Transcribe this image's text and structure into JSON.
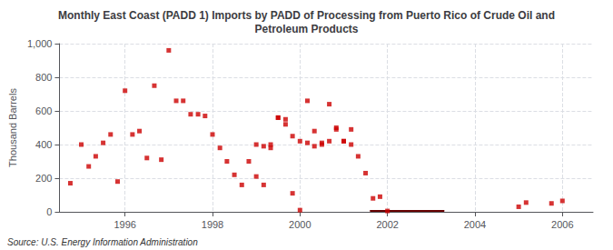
{
  "chart_data": {
    "type": "scatter",
    "title": "Monthly East Coast (PADD 1) Imports by PADD of Processing from Puerto Rico of Crude Oil and\nPetroleum Products",
    "ylabel": "Thousand Barrels",
    "source": "Source: U.S. Energy Information Administration",
    "series": [
      {
        "type": "scatter",
        "marker": "square",
        "color": "#cc0000",
        "x": [
          1994.75,
          1995.0,
          1995.17,
          1995.33,
          1995.5,
          1995.67,
          1995.83,
          1996.0,
          1996.17,
          1996.33,
          1996.5,
          1996.67,
          1996.83,
          1997.0,
          1997.17,
          1997.33,
          1997.5,
          1997.67,
          1997.83,
          1998.0,
          1998.17,
          1998.33,
          1998.5,
          1998.67,
          1998.83,
          1999.0,
          1999.17,
          1999.33,
          1999.5,
          1999.67,
          1999.83,
          2000.0,
          2000.17,
          2000.33,
          2000.5,
          2000.67,
          2000.83,
          2001.0,
          2001.17,
          2001.33,
          2001.5,
          2001.67,
          2001.83,
          2002.0,
          2005.0,
          2005.17,
          2005.75,
          2006.0
        ],
        "values": [
          170,
          400,
          270,
          330,
          410,
          460,
          180,
          720,
          460,
          480,
          320,
          750,
          310,
          960,
          660,
          660,
          580,
          580,
          570,
          460,
          380,
          300,
          220,
          160,
          300,
          210,
          160,
          400,
          560,
          550,
          110,
          10,
          660,
          480,
          410,
          420,
          490,
          420,
          400,
          330,
          230,
          80,
          90,
          5,
          30,
          55,
          50,
          65
        ]
      },
      {
        "type": "scatter",
        "marker": "square",
        "color": "#cc0000",
        "x": [
          1999.0,
          1999.17,
          1999.33,
          1999.5,
          1999.67,
          1999.83,
          2000.0,
          2000.17,
          2000.33,
          2000.5,
          2000.67,
          2000.83,
          2001.0,
          2001.17
        ],
        "values": [
          400,
          390,
          380,
          560,
          520,
          450,
          420,
          410,
          390,
          400,
          640,
          500,
          420,
          490
        ]
      },
      {
        "type": "area",
        "color": "#660000",
        "x": [
          2001.6,
          2003.3
        ],
        "values": [
          8,
          8
        ]
      }
    ],
    "xlim": [
      1994.5,
      2006.7
    ],
    "xticks": [
      1996,
      1998,
      2000,
      2002,
      2004,
      2006
    ],
    "ylim": [
      0,
      1000
    ],
    "yticks": [
      0,
      200,
      400,
      600,
      800,
      {
        "value": 1000,
        "label": "1,000"
      }
    ],
    "grid": true
  }
}
